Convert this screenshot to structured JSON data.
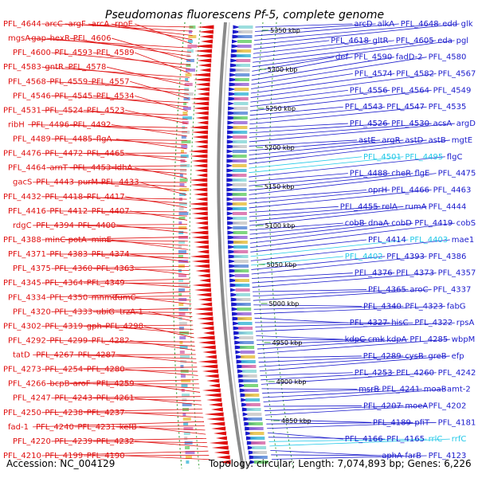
{
  "title": "Pseudomonas fluorescens Pf-5, complete genome",
  "accession": "Accession: NC_004129",
  "summary": "Topology: circular; Length: 7,074,893 bp; Genes: 6,226",
  "colors": {
    "reverse_strand": "#e01010",
    "forward_strand": "#1a1acc",
    "highlight": "#20c8e8",
    "backbone": "#8a8a8a",
    "dotted_ring": "#3aa03a"
  },
  "kbp_ticks": [
    "5350 kbp",
    "5300 kbp",
    "5250 kbp",
    "5200 kbp",
    "5150 kbp",
    "5100 kbp",
    "5050 kbp",
    "5000 kbp",
    "4950 kbp",
    "4900 kbp",
    "4850 kbp"
  ],
  "left_labels": [
    {
      "text": "PFL_4644",
      "hl": false
    },
    {
      "text": "arcC",
      "hl": false
    },
    {
      "text": "argF",
      "hl": false
    },
    {
      "text": "arcA",
      "hl": false
    },
    {
      "text": "rpoE",
      "hl": false
    },
    {
      "text": "mgsA",
      "hl": false
    },
    {
      "text": "gap",
      "hl": false
    },
    {
      "text": "hexR",
      "hl": false
    },
    {
      "text": "PFL_4606",
      "hl": false
    },
    {
      "text": "PFL_4600",
      "hl": false
    },
    {
      "text": "PFL_4593",
      "hl": false
    },
    {
      "text": "PFL_4589",
      "hl": false
    },
    {
      "text": "PFL_4583",
      "hl": false
    },
    {
      "text": "gntR",
      "hl": false
    },
    {
      "text": "PFL_4578",
      "hl": false
    },
    {
      "text": "PFL_4568",
      "hl": false
    },
    {
      "text": "PFL_4559",
      "hl": false
    },
    {
      "text": "PFL_4557",
      "hl": false
    },
    {
      "text": "PFL_4546",
      "hl": false
    },
    {
      "text": "PFL_4545",
      "hl": false
    },
    {
      "text": "PFL_4534",
      "hl": false
    },
    {
      "text": "PFL_4531",
      "hl": false
    },
    {
      "text": "PFL_4524",
      "hl": false
    },
    {
      "text": "PFL_4523",
      "hl": false
    },
    {
      "text": "ribH",
      "hl": false
    },
    {
      "text": "PFL_4496",
      "hl": false
    },
    {
      "text": "PFL_4492",
      "hl": false
    },
    {
      "text": "PFL_4489",
      "hl": false
    },
    {
      "text": "PFL_4485",
      "hl": false
    },
    {
      "text": "flgA",
      "hl": false
    },
    {
      "text": "PFL_4476",
      "hl": false
    },
    {
      "text": "PFL_4472",
      "hl": false
    },
    {
      "text": "PFL_4465",
      "hl": false
    },
    {
      "text": "PFL_4464",
      "hl": false
    },
    {
      "text": "arnT",
      "hl": false
    },
    {
      "text": "PFL_4453",
      "hl": false
    },
    {
      "text": "ldhA",
      "hl": false
    },
    {
      "text": "gacS",
      "hl": false
    },
    {
      "text": "PFL_4443",
      "hl": false
    },
    {
      "text": "purM",
      "hl": false
    },
    {
      "text": "PFL_4433",
      "hl": false
    },
    {
      "text": "PFL_4432",
      "hl": false
    },
    {
      "text": "PFL_4418",
      "hl": false
    },
    {
      "text": "PFL_4417",
      "hl": false
    },
    {
      "text": "PFL_4416",
      "hl": false
    },
    {
      "text": "PFL_4412",
      "hl": false
    },
    {
      "text": "PFL_4407",
      "hl": false
    },
    {
      "text": "rdgC",
      "hl": false
    },
    {
      "text": "PFL_4394",
      "hl": false
    },
    {
      "text": "PFL_4400",
      "hl": false
    },
    {
      "text": "PFL_4388",
      "hl": false
    },
    {
      "text": "minC",
      "hl": false
    },
    {
      "text": "potA",
      "hl": false
    },
    {
      "text": "minE",
      "hl": false
    },
    {
      "text": "PFL_4371",
      "hl": false
    },
    {
      "text": "PFL_4383",
      "hl": false
    },
    {
      "text": "PFL_4374",
      "hl": false
    },
    {
      "text": "PFL_4375",
      "hl": false
    },
    {
      "text": "PFL_4360",
      "hl": false
    },
    {
      "text": "PFL_4363",
      "hl": false
    },
    {
      "text": "PFL_4345",
      "hl": false
    },
    {
      "text": "PFL_4364",
      "hl": false
    },
    {
      "text": "PFL_4349",
      "hl": false
    },
    {
      "text": "PFL_4334",
      "hl": false
    },
    {
      "text": "PFL_4350",
      "hl": false
    },
    {
      "text": "mnmC",
      "hl": false
    },
    {
      "text": "fumC",
      "hl": false
    },
    {
      "text": "PFL_4320",
      "hl": false
    },
    {
      "text": "PFL_4333",
      "hl": false
    },
    {
      "text": "ubiG",
      "hl": false
    },
    {
      "text": "trzA-1",
      "hl": false
    },
    {
      "text": "PFL_4302",
      "hl": false
    },
    {
      "text": "PFL_4319",
      "hl": false
    },
    {
      "text": "gph",
      "hl": false
    },
    {
      "text": "PFL_4298",
      "hl": false
    },
    {
      "text": "PFL_4292",
      "hl": false
    },
    {
      "text": "PFL_4299",
      "hl": false
    },
    {
      "text": "PFL_4282",
      "hl": false
    },
    {
      "text": "tatD",
      "hl": false
    },
    {
      "text": "PFL_4267",
      "hl": false
    },
    {
      "text": "PFL_4287",
      "hl": false
    },
    {
      "text": "PFL_4273",
      "hl": false
    },
    {
      "text": "PFL_4254",
      "hl": false
    },
    {
      "text": "PFL_4280",
      "hl": false
    },
    {
      "text": "PFL_4266",
      "hl": false
    },
    {
      "text": "bcpB",
      "hl": false
    },
    {
      "text": "aroF",
      "hl": false
    },
    {
      "text": "PFL_4259",
      "hl": false
    },
    {
      "text": "PFL_4247",
      "hl": false
    },
    {
      "text": "PFL_4243",
      "hl": false
    },
    {
      "text": "PFL_4261",
      "hl": false
    },
    {
      "text": "PFL_4250",
      "hl": false
    },
    {
      "text": "PFL_4238",
      "hl": false
    },
    {
      "text": "PFL_4237",
      "hl": false
    },
    {
      "text": "fad-1",
      "hl": false
    },
    {
      "text": "PFL_4240",
      "hl": false
    },
    {
      "text": "PFL_4231",
      "hl": false
    },
    {
      "text": "kefB",
      "hl": false
    },
    {
      "text": "PFL_4220",
      "hl": false
    },
    {
      "text": "PFL_4239",
      "hl": false
    },
    {
      "text": "PFL_4232",
      "hl": false
    },
    {
      "text": "PFL_4210",
      "hl": false
    },
    {
      "text": "PFL_4199",
      "hl": false
    },
    {
      "text": "PFL_4190",
      "hl": false
    }
  ],
  "right_labels": [
    {
      "text": "arcD",
      "hl": false
    },
    {
      "text": "alkA",
      "hl": false
    },
    {
      "text": "PFL_4648",
      "hl": false
    },
    {
      "text": "edd",
      "hl": false
    },
    {
      "text": "glk",
      "hl": false
    },
    {
      "text": "PFL_4618",
      "hl": false
    },
    {
      "text": "gltR",
      "hl": false
    },
    {
      "text": "PFL_4605",
      "hl": false
    },
    {
      "text": "eda",
      "hl": false
    },
    {
      "text": "pgl",
      "hl": false
    },
    {
      "text": "def",
      "hl": false
    },
    {
      "text": "PFL_4590",
      "hl": false
    },
    {
      "text": "fadD-2",
      "hl": false
    },
    {
      "text": "PFL_4580",
      "hl": false
    },
    {
      "text": "PFL_4574",
      "hl": false
    },
    {
      "text": "PFL_4582",
      "hl": false
    },
    {
      "text": "PFL_4567",
      "hl": false
    },
    {
      "text": "PFL_4556",
      "hl": false
    },
    {
      "text": "PFL_4564",
      "hl": false
    },
    {
      "text": "PFL_4549",
      "hl": false
    },
    {
      "text": "PFL_4543",
      "hl": false
    },
    {
      "text": "PFL_4547",
      "hl": false
    },
    {
      "text": "PFL_4535",
      "hl": false
    },
    {
      "text": "PFL_4526",
      "hl": false
    },
    {
      "text": "PFL_4530",
      "hl": false
    },
    {
      "text": "acsA",
      "hl": false
    },
    {
      "text": "argD",
      "hl": false
    },
    {
      "text": "astE",
      "hl": false
    },
    {
      "text": "argR",
      "hl": false
    },
    {
      "text": "astD",
      "hl": false
    },
    {
      "text": "astB",
      "hl": false
    },
    {
      "text": "mgtE",
      "hl": false
    },
    {
      "text": "PFL_4501",
      "hl": true
    },
    {
      "text": "PFL_4495",
      "hl": true
    },
    {
      "text": "flgC",
      "hl": false
    },
    {
      "text": "PFL_4488",
      "hl": false
    },
    {
      "text": "cheR",
      "hl": false
    },
    {
      "text": "flgE",
      "hl": false
    },
    {
      "text": "PFL_4475",
      "hl": false
    },
    {
      "text": "oprH",
      "hl": false
    },
    {
      "text": "PFL_4466",
      "hl": false
    },
    {
      "text": "PFL_4463",
      "hl": false
    },
    {
      "text": "PFL_4455",
      "hl": false
    },
    {
      "text": "relA",
      "hl": false
    },
    {
      "text": "rumA",
      "hl": false
    },
    {
      "text": "PFL_4444",
      "hl": false
    },
    {
      "text": "cobB",
      "hl": false
    },
    {
      "text": "dnaA",
      "hl": false
    },
    {
      "text": "cobD",
      "hl": false
    },
    {
      "text": "PFL_4419",
      "hl": false
    },
    {
      "text": "cobS",
      "hl": false
    },
    {
      "text": "PFL_4414",
      "hl": false
    },
    {
      "text": "PFL_4403",
      "hl": true
    },
    {
      "text": "mae1",
      "hl": false
    },
    {
      "text": "PFL_4402",
      "hl": true
    },
    {
      "text": "PFL_4393",
      "hl": false
    },
    {
      "text": "PFL_4386",
      "hl": false
    },
    {
      "text": "PFL_4376",
      "hl": false
    },
    {
      "text": "PFL_4373",
      "hl": false
    },
    {
      "text": "PFL_4357",
      "hl": false
    },
    {
      "text": "PFL_4365",
      "hl": false
    },
    {
      "text": "aroC",
      "hl": false
    },
    {
      "text": "PFL_4337",
      "hl": false
    },
    {
      "text": "PFL_4340",
      "hl": false
    },
    {
      "text": "PFL_4323",
      "hl": false
    },
    {
      "text": "fabG",
      "hl": false
    },
    {
      "text": "PFL_4327",
      "hl": false
    },
    {
      "text": "hisC",
      "hl": false
    },
    {
      "text": "PFL_4322",
      "hl": false
    },
    {
      "text": "rpsA",
      "hl": false
    },
    {
      "text": "kdpC",
      "hl": false
    },
    {
      "text": "cmk",
      "hl": false
    },
    {
      "text": "kdpA",
      "hl": false
    },
    {
      "text": "PFL_4285",
      "hl": false
    },
    {
      "text": "wbpM",
      "hl": false
    },
    {
      "text": "PFL_4289",
      "hl": false
    },
    {
      "text": "cysB",
      "hl": false
    },
    {
      "text": "greB",
      "hl": false
    },
    {
      "text": "efp",
      "hl": false
    },
    {
      "text": "PFL_4253",
      "hl": false
    },
    {
      "text": "PFL_4260",
      "hl": false
    },
    {
      "text": "PFL_4242",
      "hl": false
    },
    {
      "text": "msrB",
      "hl": false
    },
    {
      "text": "PFL_4241",
      "hl": false
    },
    {
      "text": "moaB",
      "hl": false
    },
    {
      "text": "amt-2",
      "hl": false
    },
    {
      "text": "PFL_4207",
      "hl": false
    },
    {
      "text": "moeA",
      "hl": false
    },
    {
      "text": "PFL_4202",
      "hl": false
    },
    {
      "text": "PFL_4189",
      "hl": false
    },
    {
      "text": "pfiT",
      "hl": false
    },
    {
      "text": "PFL_4181",
      "hl": false
    },
    {
      "text": "PFL_4166",
      "hl": false
    },
    {
      "text": "PFL_4165",
      "hl": false
    },
    {
      "text": "rrlC",
      "hl": true
    },
    {
      "text": "rrfC",
      "hl": true
    },
    {
      "text": "aphA",
      "hl": false
    },
    {
      "text": "farB",
      "hl": false
    },
    {
      "text": "PFL_4123",
      "hl": false
    }
  ]
}
